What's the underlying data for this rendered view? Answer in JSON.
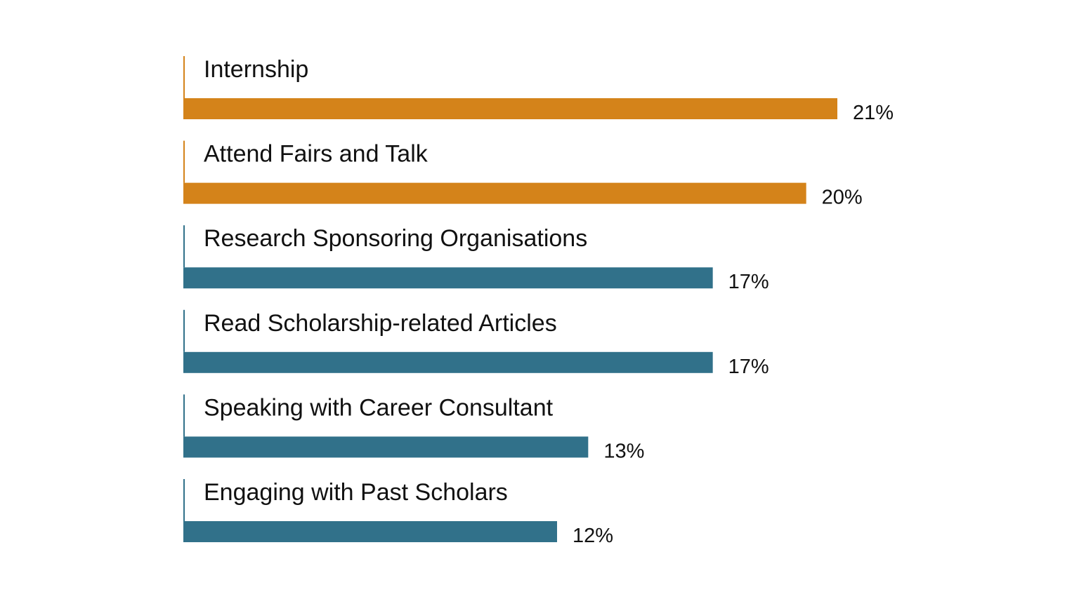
{
  "chart_data": {
    "type": "bar",
    "orientation": "horizontal",
    "categories": [
      "Internship",
      "Attend Fairs and Talk",
      "Research Sponsoring Organisations",
      "Read Scholarship-related Articles",
      "Speaking with Career Consultant",
      "Engaging with Past Scholars"
    ],
    "values": [
      21,
      20,
      17,
      17,
      13,
      12
    ],
    "value_labels": [
      "21%",
      "20%",
      "17%",
      "17%",
      "13%",
      "12%"
    ],
    "bar_colors": [
      "#d4831a",
      "#d4831a",
      "#31718a",
      "#31718a",
      "#31718a",
      "#31718a"
    ],
    "xlim": [
      0,
      21
    ],
    "grid": false,
    "legend": "none"
  }
}
